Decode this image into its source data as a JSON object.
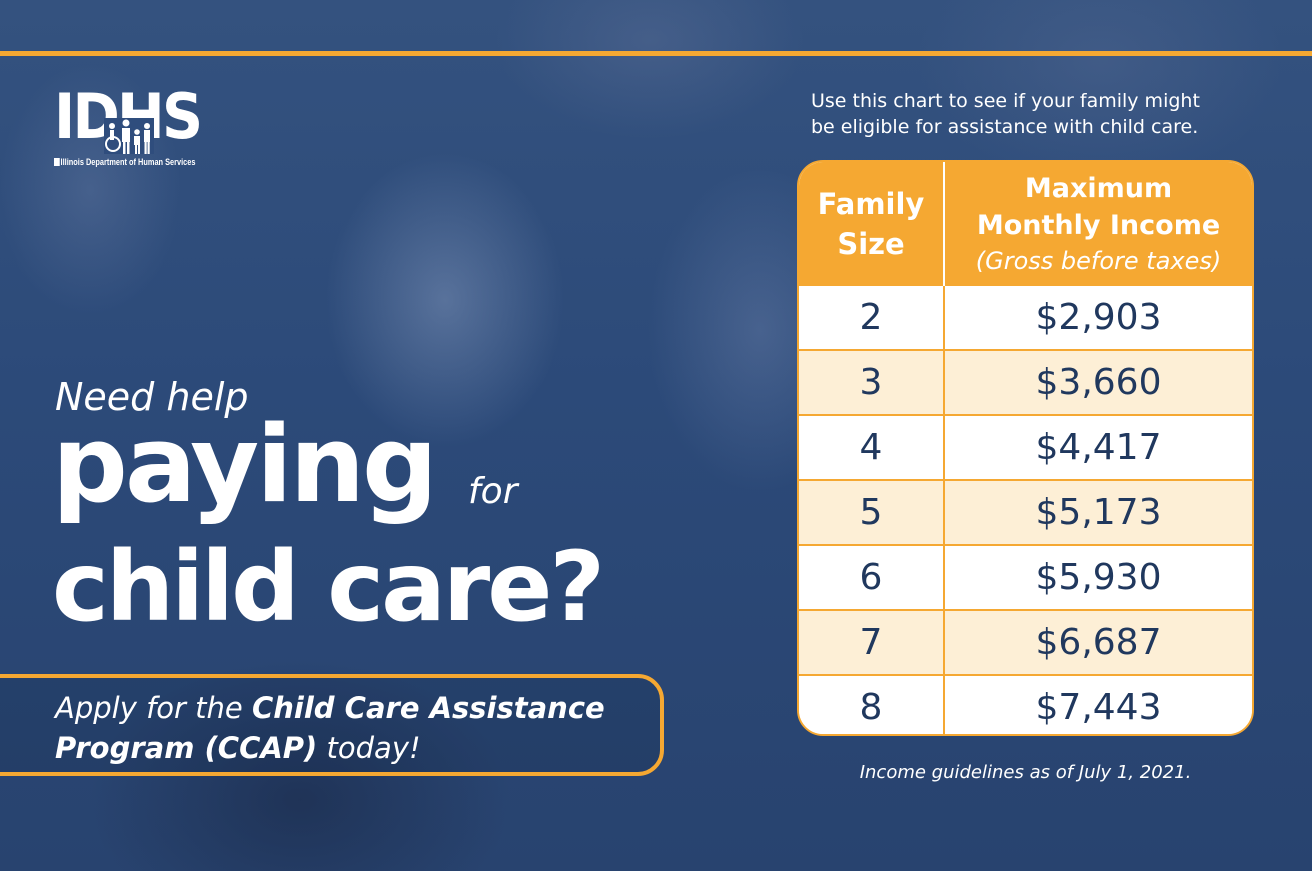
{
  "logo": {
    "letters": "IDHS",
    "subtitle": "Illinois Department of Human Services"
  },
  "headline": {
    "line1": "Need help",
    "line2_big": "paying",
    "line2_small": "for",
    "line3_big": "child care?"
  },
  "callout": {
    "prefix": "Apply for the ",
    "program_line1": "Child Care Assistance",
    "program_line2": "Program (CCAP)",
    "suffix": " today!"
  },
  "intro": {
    "line1": "Use this chart to see if your family might",
    "line2": "be eligible for assistance with child care."
  },
  "table": {
    "header_size_line1": "Family",
    "header_size_line2": "Size",
    "header_income_line1": "Maximum",
    "header_income_line2": "Monthly Income",
    "header_income_line3": "(Gross before taxes)",
    "rows": [
      {
        "size": "2",
        "income": "$2,903"
      },
      {
        "size": "3",
        "income": "$3,660"
      },
      {
        "size": "4",
        "income": "$4,417"
      },
      {
        "size": "5",
        "income": "$5,173"
      },
      {
        "size": "6",
        "income": "$5,930"
      },
      {
        "size": "7",
        "income": "$6,687"
      },
      {
        "size": "8",
        "income": "$7,443"
      }
    ]
  },
  "footnote": "Income guidelines as of July 1, 2021.",
  "colors": {
    "accent": "#f5a832",
    "background": "#2f4d7d",
    "table_text": "#20385e",
    "row_alt": "#fdefd6"
  }
}
